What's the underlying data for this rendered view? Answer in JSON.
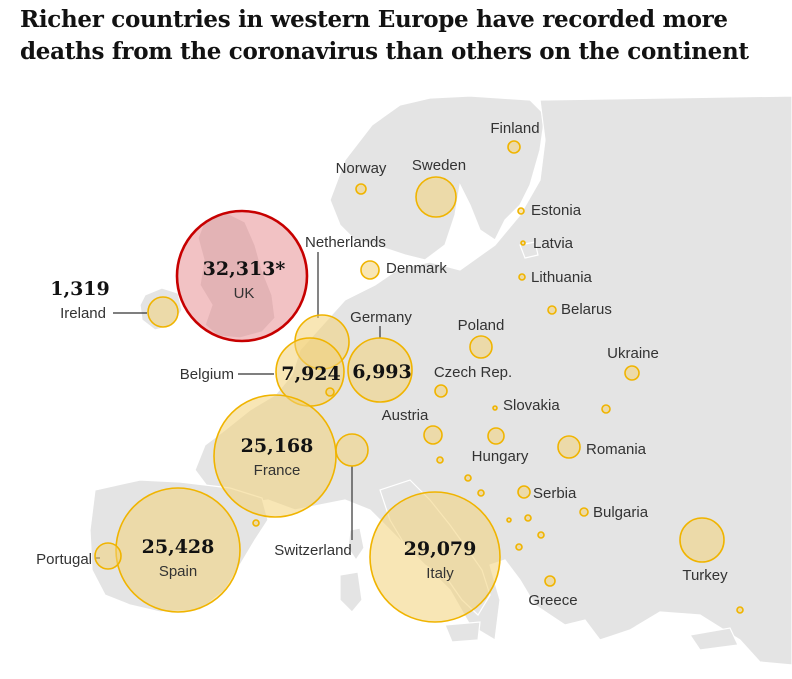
{
  "title": "Richer countries in western Europe have recorded more deaths from the coronavirus than others on the continent",
  "colors": {
    "bubble_fill": "#f3d278",
    "bubble_stroke": "#f0b400",
    "uk_fill": "#e2787d",
    "uk_stroke": "#c70000",
    "land": "#e4e4e4",
    "sea": "#ffffff"
  },
  "countries": [
    {
      "id": "uk",
      "name": "UK",
      "value": "32,313*"
    },
    {
      "id": "ireland",
      "name": "Ireland",
      "value": "1,319"
    },
    {
      "id": "belgium",
      "name": "Belgium",
      "value": "7,924"
    },
    {
      "id": "netherlands",
      "name": "Netherlands"
    },
    {
      "id": "germany",
      "name": "Germany",
      "value": "6,993"
    },
    {
      "id": "france",
      "name": "France",
      "value": "25,168"
    },
    {
      "id": "spain",
      "name": "Spain",
      "value": "25,428"
    },
    {
      "id": "italy",
      "name": "Italy",
      "value": "29,079"
    },
    {
      "id": "portugal",
      "name": "Portugal"
    },
    {
      "id": "switzerland",
      "name": "Switzerland"
    },
    {
      "id": "finland",
      "name": "Finland"
    },
    {
      "id": "norway",
      "name": "Norway"
    },
    {
      "id": "sweden",
      "name": "Sweden"
    },
    {
      "id": "estonia",
      "name": "Estonia"
    },
    {
      "id": "latvia",
      "name": "Latvia"
    },
    {
      "id": "lithuania",
      "name": "Lithuania"
    },
    {
      "id": "denmark",
      "name": "Denmark"
    },
    {
      "id": "belarus",
      "name": "Belarus"
    },
    {
      "id": "poland",
      "name": "Poland"
    },
    {
      "id": "ukraine",
      "name": "Ukraine"
    },
    {
      "id": "czech",
      "name": "Czech Rep."
    },
    {
      "id": "slovakia",
      "name": "Slovakia"
    },
    {
      "id": "austria",
      "name": "Austria"
    },
    {
      "id": "hungary",
      "name": "Hungary"
    },
    {
      "id": "romania",
      "name": "Romania"
    },
    {
      "id": "serbia",
      "name": "Serbia"
    },
    {
      "id": "bulgaria",
      "name": "Bulgaria"
    },
    {
      "id": "greece",
      "name": "Greece"
    },
    {
      "id": "turkey",
      "name": "Turkey"
    }
  ]
}
